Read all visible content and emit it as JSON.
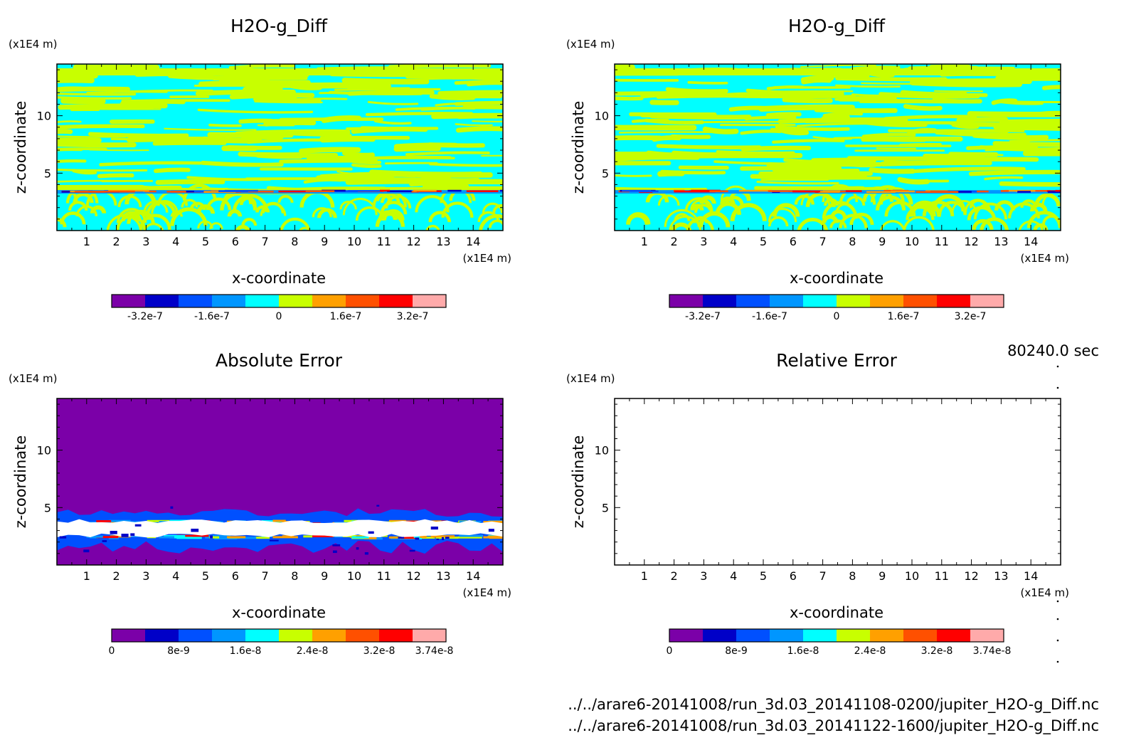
{
  "time_label": "80240.0 sec",
  "files": [
    "../../arare6-20141008/run_3d.03_20141108-0200/jupiter_H2O-g_Diff.nc",
    "../../arare6-20141008/run_3d.03_20141122-1600/jupiter_H2O-g_Diff.nc"
  ],
  "chart_data": [
    {
      "type": "heatmap",
      "title": "H2O-g_Diff",
      "xlabel": "x-coordinate",
      "ylabel": "z-coordinate",
      "x_unit": "(x1E4 m)",
      "y_unit": "(x1E4 m)",
      "xlim": [
        0,
        15
      ],
      "ylim": [
        0,
        14.5
      ],
      "xticks": [
        "1",
        "2",
        "3",
        "4",
        "5",
        "6",
        "7",
        "8",
        "9",
        "10",
        "11",
        "12",
        "13",
        "14"
      ],
      "yticks": [
        "5",
        "10"
      ],
      "colorbar": {
        "colors": [
          "#7b00a8",
          "#0000c8",
          "#0050ff",
          "#0096ff",
          "#00ffff",
          "#c8ff00",
          "#ffa000",
          "#ff5000",
          "#ff0000",
          "#ffaaaa"
        ],
        "tick_labels": [
          "-3.2e-7",
          "-1.6e-7",
          "0",
          "1.6e-7",
          "3.2e-7"
        ]
      },
      "pattern": "diff"
    },
    {
      "type": "heatmap",
      "title": "H2O-g_Diff",
      "xlabel": "x-coordinate",
      "ylabel": "z-coordinate",
      "x_unit": "(x1E4 m)",
      "y_unit": "(x1E4 m)",
      "xlim": [
        0,
        15
      ],
      "ylim": [
        0,
        14.5
      ],
      "xticks": [
        "1",
        "2",
        "3",
        "4",
        "5",
        "6",
        "7",
        "8",
        "9",
        "10",
        "11",
        "12",
        "13",
        "14"
      ],
      "yticks": [
        "5",
        "10"
      ],
      "colorbar": {
        "colors": [
          "#7b00a8",
          "#0000c8",
          "#0050ff",
          "#0096ff",
          "#00ffff",
          "#c8ff00",
          "#ffa000",
          "#ff5000",
          "#ff0000",
          "#ffaaaa"
        ],
        "tick_labels": [
          "-3.2e-7",
          "-1.6e-7",
          "0",
          "1.6e-7",
          "3.2e-7"
        ]
      },
      "pattern": "diff"
    },
    {
      "type": "heatmap",
      "title": "Absolute Error",
      "xlabel": "x-coordinate",
      "ylabel": "z-coordinate",
      "x_unit": "(x1E4 m)",
      "y_unit": "(x1E4 m)",
      "xlim": [
        0,
        15
      ],
      "ylim": [
        0,
        14.5
      ],
      "xticks": [
        "1",
        "2",
        "3",
        "4",
        "5",
        "6",
        "7",
        "8",
        "9",
        "10",
        "11",
        "12",
        "13",
        "14"
      ],
      "yticks": [
        "5",
        "10"
      ],
      "colorbar": {
        "colors": [
          "#7b00a8",
          "#0000c8",
          "#0050ff",
          "#0096ff",
          "#00ffff",
          "#c8ff00",
          "#ffa000",
          "#ff5000",
          "#ff0000",
          "#ffaaaa"
        ],
        "tick_labels": [
          "0",
          "8e-9",
          "1.6e-8",
          "2.4e-8",
          "3.2e-8",
          "3.74e-8"
        ]
      },
      "pattern": "abs"
    },
    {
      "type": "heatmap",
      "title": "Relative Error",
      "xlabel": "x-coordinate",
      "ylabel": "z-coordinate",
      "x_unit": "(x1E4 m)",
      "y_unit": "(x1E4 m)",
      "xlim": [
        0,
        15
      ],
      "ylim": [
        0,
        14.5
      ],
      "xticks": [
        "1",
        "2",
        "3",
        "4",
        "5",
        "6",
        "7",
        "8",
        "9",
        "10",
        "11",
        "12",
        "13",
        "14"
      ],
      "yticks": [
        "5",
        "10"
      ],
      "colorbar": {
        "colors": [
          "#7b00a8",
          "#0000c8",
          "#0050ff",
          "#0096ff",
          "#00ffff",
          "#c8ff00",
          "#ffa000",
          "#ff5000",
          "#ff0000",
          "#ffaaaa"
        ],
        "tick_labels": [
          "0",
          "8e-9",
          "1.6e-8",
          "2.4e-8",
          "3.2e-8",
          "3.74e-8"
        ]
      },
      "pattern": "empty"
    }
  ]
}
